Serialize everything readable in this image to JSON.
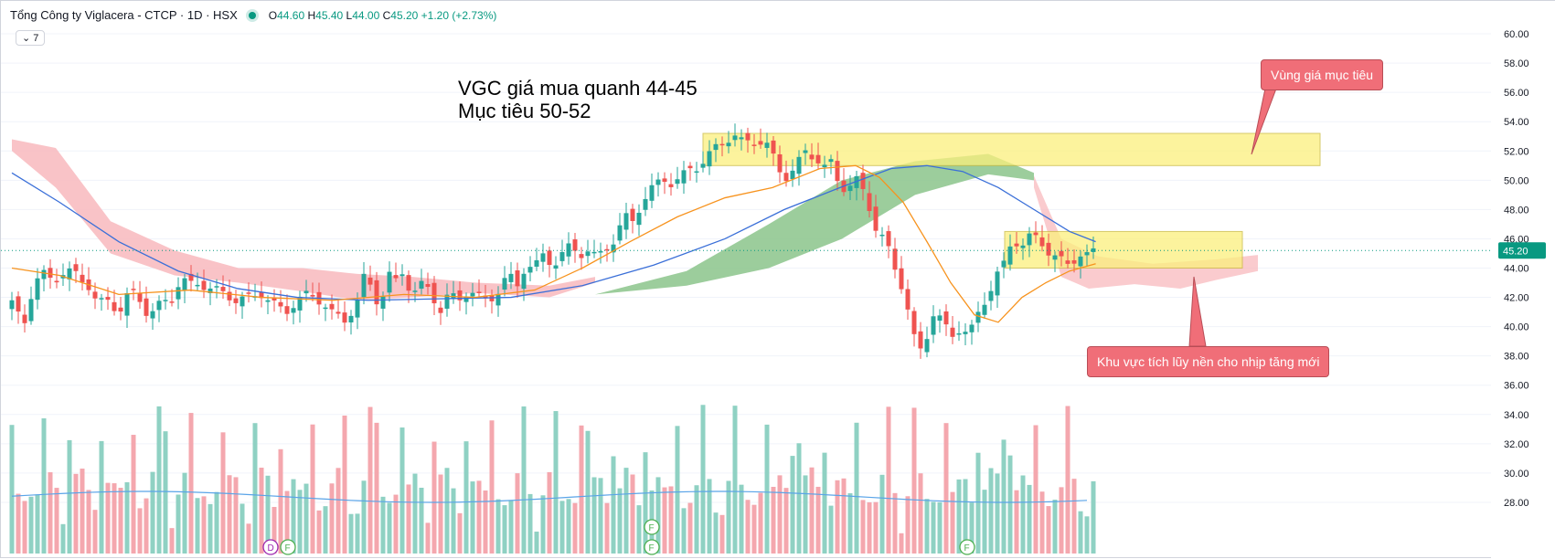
{
  "header": {
    "symbol_name": "Tổng Công ty Viglacera - CTCP · 1D · HSX",
    "o_label": "O",
    "o_value": "44.60",
    "h_label": "H",
    "h_value": "45.40",
    "l_label": "L",
    "l_value": "44.00",
    "c_label": "C",
    "c_value": "45.20",
    "change": "+1.20 (+2.73%)",
    "indicator_chip": "7"
  },
  "annotations": {
    "note_line1": "VGC giá mua quanh 44-45",
    "note_line2": "Mục tiêu 50-52",
    "target_callout": "Vùng giá mục tiêu",
    "accum_callout": "Khu vực tích lũy nền cho nhịp tăng mới",
    "target_zone": [
      51,
      53.2
    ],
    "accum_zone": [
      44,
      46.5
    ]
  },
  "colors": {
    "up": "#26a69a",
    "down": "#ef5350",
    "vol_up": "#8fd1c3",
    "vol_down": "#f4a7ae",
    "ma_fast": "#f7931e",
    "ma_slow": "#3a6fd8",
    "cloud_bear": "#f8b9bd",
    "cloud_bull": "#8bc48b",
    "zone": "#fbf07d",
    "callout": "#f06e78"
  },
  "chart_data": {
    "type": "candlestick",
    "y_axis": {
      "ticks": [
        "60.00",
        "58.00",
        "56.00",
        "54.00",
        "52.00",
        "50.00",
        "48.00",
        "46.00",
        "44.00",
        "42.00",
        "40.00",
        "38.00",
        "36.00",
        "34.00",
        "32.00",
        "30.00",
        "28.00"
      ],
      "min": 27,
      "max": 61,
      "current_price_label": "45.20",
      "current_price": 45.2
    },
    "price_path": [
      [
        0,
        41.5
      ],
      [
        10,
        40.2
      ],
      [
        18,
        42.8
      ],
      [
        25,
        43.6
      ],
      [
        35,
        43.2
      ],
      [
        45,
        43.8
      ],
      [
        55,
        43.5
      ],
      [
        65,
        42.8
      ],
      [
        72,
        41.5
      ],
      [
        82,
        41.8
      ],
      [
        90,
        41.0
      ],
      [
        100,
        42.5
      ],
      [
        108,
        41.8
      ],
      [
        115,
        40.8
      ],
      [
        125,
        41.5
      ],
      [
        135,
        42.0
      ],
      [
        142,
        43.3
      ],
      [
        150,
        42.8
      ],
      [
        158,
        43.0
      ],
      [
        170,
        42.5
      ],
      [
        180,
        42.2
      ],
      [
        190,
        41.8
      ],
      [
        200,
        42.0
      ],
      [
        210,
        42.3
      ],
      [
        220,
        41.5
      ],
      [
        230,
        41.0
      ],
      [
        240,
        41.8
      ],
      [
        250,
        42.2
      ],
      [
        260,
        41.8
      ],
      [
        270,
        40.8
      ],
      [
        280,
        40.5
      ],
      [
        290,
        41.5
      ],
      [
        297,
        43.5
      ],
      [
        304,
        42.5
      ],
      [
        310,
        41.2
      ],
      [
        316,
        43.8
      ],
      [
        322,
        42.6
      ],
      [
        326,
        44.3
      ],
      [
        332,
        43.0
      ],
      [
        338,
        42.3
      ],
      [
        345,
        42.8
      ],
      [
        352,
        42.6
      ],
      [
        360,
        41.0
      ],
      [
        368,
        42.2
      ],
      [
        375,
        41.8
      ],
      [
        385,
        42.6
      ],
      [
        390,
        42.0
      ],
      [
        400,
        41.8
      ],
      [
        408,
        42.3
      ],
      [
        418,
        43.5
      ],
      [
        425,
        42.8
      ],
      [
        432,
        44.2
      ],
      [
        440,
        44.0
      ],
      [
        448,
        45.0
      ],
      [
        455,
        44.2
      ],
      [
        462,
        44.8
      ],
      [
        470,
        45.5
      ],
      [
        478,
        45.0
      ],
      [
        485,
        45.2
      ],
      [
        492,
        44.6
      ],
      [
        500,
        45.5
      ],
      [
        508,
        46.0
      ],
      [
        515,
        47.5
      ],
      [
        522,
        47.2
      ],
      [
        530,
        48.5
      ],
      [
        540,
        49.5
      ],
      [
        548,
        50.2
      ],
      [
        555,
        49.8
      ],
      [
        562,
        50.0
      ],
      [
        570,
        50.8
      ],
      [
        578,
        51.0
      ],
      [
        585,
        51.5
      ],
      [
        592,
        52.2
      ],
      [
        600,
        52.8
      ],
      [
        608,
        53.0
      ],
      [
        615,
        52.5
      ],
      [
        622,
        52.8
      ],
      [
        630,
        52.6
      ],
      [
        637,
        52.2
      ],
      [
        644,
        51.0
      ],
      [
        650,
        50.2
      ],
      [
        656,
        50.5
      ],
      [
        662,
        51.2
      ],
      [
        668,
        52.0
      ],
      [
        676,
        51.6
      ],
      [
        684,
        50.8
      ],
      [
        690,
        51.2
      ],
      [
        697,
        49.5
      ],
      [
        705,
        49.6
      ],
      [
        712,
        50.0
      ],
      [
        720,
        48.6
      ],
      [
        728,
        46.5
      ],
      [
        735,
        45.8
      ],
      [
        742,
        44.2
      ],
      [
        749,
        42.8
      ],
      [
        756,
        40.5
      ],
      [
        762,
        38.0
      ],
      [
        768,
        38.8
      ],
      [
        775,
        41.0
      ],
      [
        782,
        40.5
      ],
      [
        790,
        39.2
      ],
      [
        798,
        40.0
      ],
      [
        806,
        39.5
      ],
      [
        813,
        40.8
      ],
      [
        820,
        42.0
      ],
      [
        828,
        43.5
      ],
      [
        835,
        44.2
      ],
      [
        842,
        46.0
      ],
      [
        850,
        45.6
      ],
      [
        858,
        46.2
      ],
      [
        866,
        45.8
      ],
      [
        874,
        45.0
      ],
      [
        882,
        44.5
      ],
      [
        890,
        44.2
      ],
      [
        897,
        45.0
      ],
      [
        905,
        44.8
      ],
      [
        912,
        45.2
      ]
    ],
    "ma_fast_path": [
      [
        0,
        44.0
      ],
      [
        40,
        43.5
      ],
      [
        90,
        42.2
      ],
      [
        150,
        42.5
      ],
      [
        210,
        42.0
      ],
      [
        270,
        41.8
      ],
      [
        330,
        42.2
      ],
      [
        390,
        42.0
      ],
      [
        440,
        42.5
      ],
      [
        480,
        44.0
      ],
      [
        520,
        45.8
      ],
      [
        560,
        47.5
      ],
      [
        600,
        48.8
      ],
      [
        640,
        49.5
      ],
      [
        680,
        50.8
      ],
      [
        710,
        51.0
      ],
      [
        730,
        50.2
      ],
      [
        750,
        48.5
      ],
      [
        770,
        45.8
      ],
      [
        790,
        43.0
      ],
      [
        810,
        40.8
      ],
      [
        830,
        40.3
      ],
      [
        850,
        42.0
      ],
      [
        870,
        43.0
      ],
      [
        890,
        43.8
      ],
      [
        912,
        44.3
      ]
    ],
    "ma_slow_path": [
      [
        0,
        50.5
      ],
      [
        40,
        48.5
      ],
      [
        90,
        45.8
      ],
      [
        140,
        43.8
      ],
      [
        190,
        42.6
      ],
      [
        240,
        42.0
      ],
      [
        300,
        41.8
      ],
      [
        360,
        41.9
      ],
      [
        420,
        42.0
      ],
      [
        480,
        42.8
      ],
      [
        540,
        44.2
      ],
      [
        600,
        46.0
      ],
      [
        650,
        48.0
      ],
      [
        700,
        49.6
      ],
      [
        740,
        50.8
      ],
      [
        770,
        51.0
      ],
      [
        800,
        50.6
      ],
      [
        830,
        49.5
      ],
      [
        860,
        48.0
      ],
      [
        890,
        46.5
      ],
      [
        912,
        45.8
      ]
    ],
    "volume_note": "volume bars coloured by candle direction, with moving average line"
  }
}
